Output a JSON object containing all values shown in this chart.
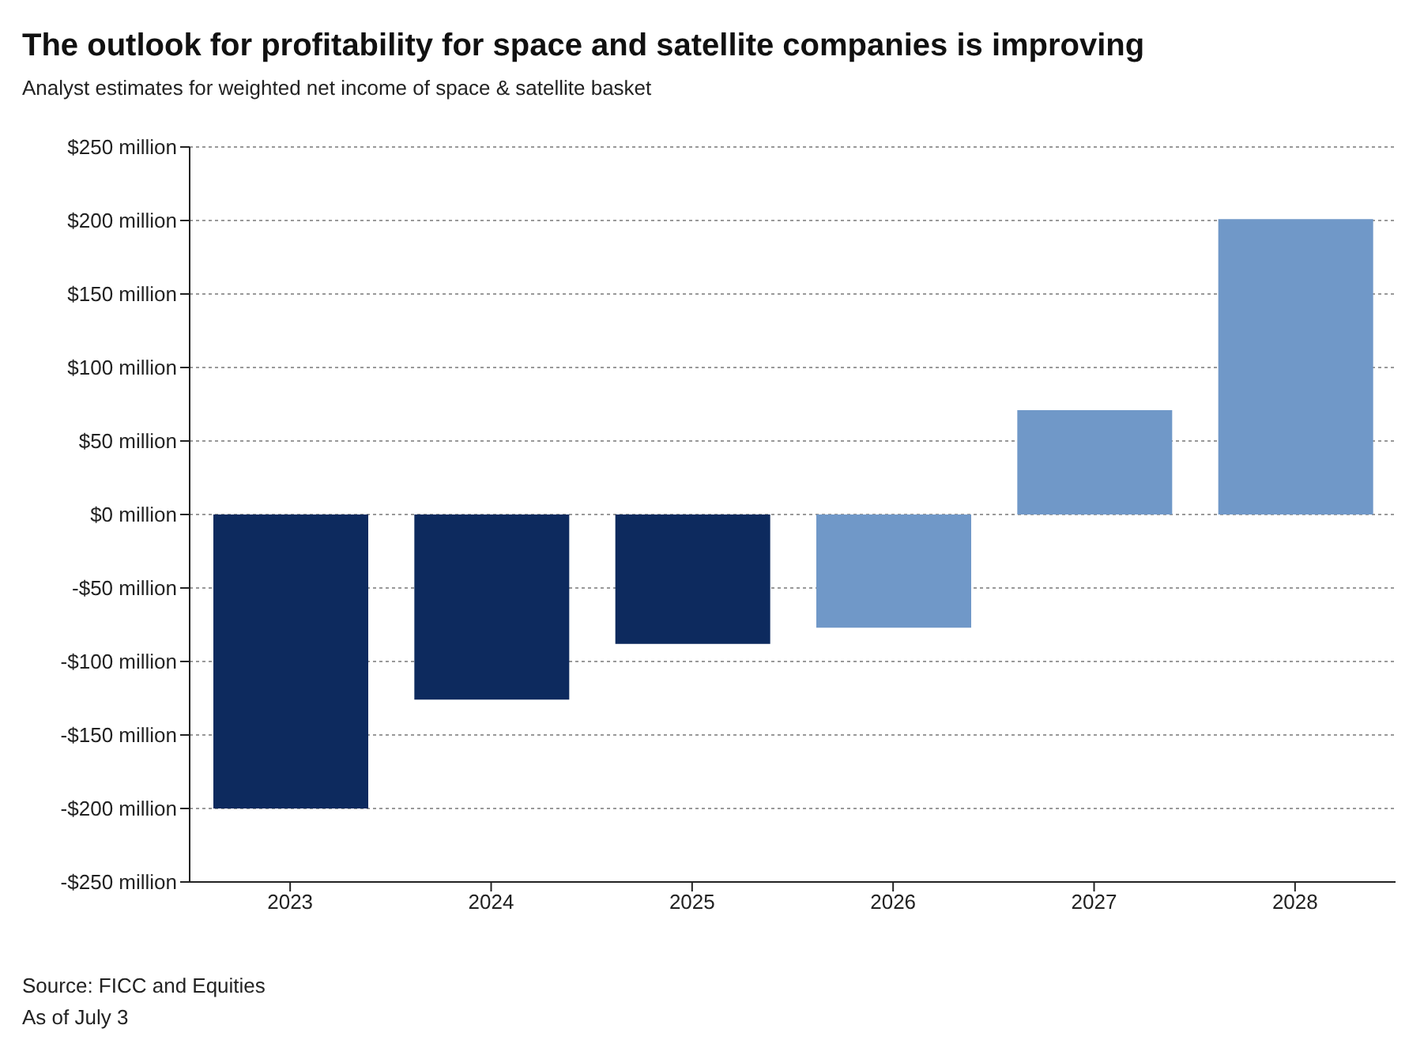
{
  "chart_data": {
    "type": "bar",
    "title": "The outlook for profitability for space and satellite companies is improving",
    "subtitle": "Analyst estimates for weighted net income of space & satellite basket",
    "categories": [
      "2023",
      "2024",
      "2025",
      "2026",
      "2027",
      "2028"
    ],
    "values": [
      -200,
      -126,
      -88,
      -77,
      71,
      201
    ],
    "colors": [
      "#0d2a5e",
      "#0d2a5e",
      "#0d2a5e",
      "#7098c8",
      "#7098c8",
      "#7098c8"
    ],
    "ylim": [
      -250,
      250
    ],
    "yticks": [
      {
        "value": -250,
        "label": "-$250 million"
      },
      {
        "value": -200,
        "label": "-$200 million"
      },
      {
        "value": -150,
        "label": "-$150 million"
      },
      {
        "value": -100,
        "label": "-$100 million"
      },
      {
        "value": -50,
        "label": "-$50 million"
      },
      {
        "value": 0,
        "label": "$0 million"
      },
      {
        "value": 50,
        "label": "$50 million"
      },
      {
        "value": 100,
        "label": "$100 million"
      },
      {
        "value": 150,
        "label": "$150 million"
      },
      {
        "value": 200,
        "label": "$200 million"
      },
      {
        "value": 250,
        "label": "$250 million"
      }
    ],
    "grid": "y",
    "annotations": [
      "Source: FICC and Equities",
      "As of July 3"
    ]
  }
}
